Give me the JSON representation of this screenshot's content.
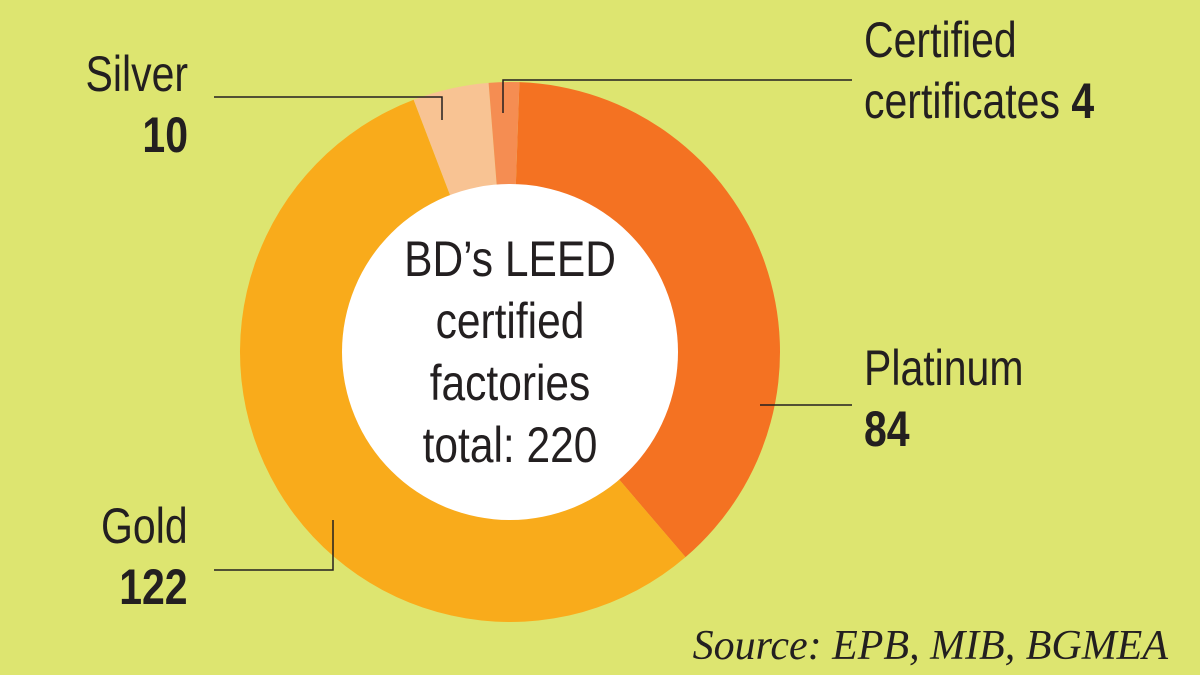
{
  "chart_data": {
    "type": "pie",
    "title_lines": [
      "BD’s LEED",
      "certified",
      "factories",
      "total: 220"
    ],
    "slices": [
      {
        "name": "Platinum",
        "value": 84,
        "color": "#f47222"
      },
      {
        "name": "Gold",
        "value": 122,
        "color": "#f9ab1b"
      },
      {
        "name": "Silver",
        "value": 10,
        "color": "#f8c393"
      },
      {
        "name_lines": [
          "Certified",
          "certificates"
        ],
        "value": 4,
        "color": "#f58d52"
      }
    ],
    "source": "Source: EPB, MIB, BGMEA"
  }
}
